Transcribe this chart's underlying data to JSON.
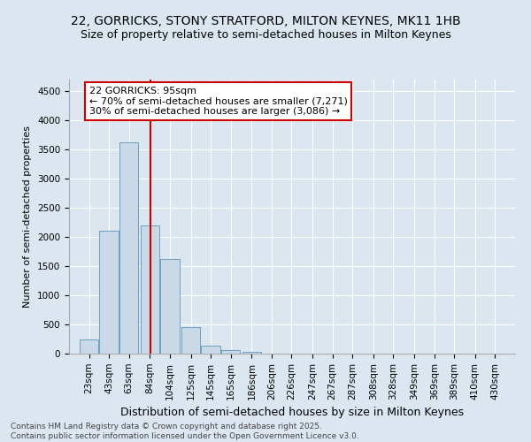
{
  "title": "22, GORRICKS, STONY STRATFORD, MILTON KEYNES, MK11 1HB",
  "subtitle": "Size of property relative to semi-detached houses in Milton Keynes",
  "xlabel": "Distribution of semi-detached houses by size in Milton Keynes",
  "ylabel": "Number of semi-detached properties",
  "bin_labels": [
    "23sqm",
    "43sqm",
    "63sqm",
    "84sqm",
    "104sqm",
    "125sqm",
    "145sqm",
    "165sqm",
    "186sqm",
    "206sqm",
    "226sqm",
    "247sqm",
    "267sqm",
    "287sqm",
    "308sqm",
    "328sqm",
    "349sqm",
    "369sqm",
    "389sqm",
    "410sqm",
    "430sqm"
  ],
  "bin_edges": [
    23,
    43,
    63,
    84,
    104,
    125,
    145,
    165,
    186,
    206,
    226,
    247,
    267,
    287,
    308,
    328,
    349,
    369,
    389,
    410,
    430
  ],
  "bar_heights": [
    250,
    2100,
    3620,
    2200,
    1620,
    450,
    130,
    60,
    30,
    0,
    0,
    0,
    0,
    0,
    0,
    0,
    0,
    0,
    0,
    0
  ],
  "bar_color": "#c9d9e8",
  "bar_edgecolor": "#6a9fc0",
  "property_size": 95,
  "vline_color": "#cc0000",
  "annotation_line1": "22 GORRICKS: 95sqm",
  "annotation_line2": "← 70% of semi-detached houses are smaller (7,271)",
  "annotation_line3": "30% of semi-detached houses are larger (3,086) →",
  "annotation_box_color": "#ffffff",
  "annotation_box_edgecolor": "#cc0000",
  "ylim": [
    0,
    4700
  ],
  "yticks": [
    0,
    500,
    1000,
    1500,
    2000,
    2500,
    3000,
    3500,
    4000,
    4500
  ],
  "background_color": "#dce6f0",
  "plot_background": "#dce6f0",
  "footer_text": "Contains HM Land Registry data © Crown copyright and database right 2025.\nContains public sector information licensed under the Open Government Licence v3.0.",
  "title_fontsize": 10,
  "subtitle_fontsize": 9,
  "ylabel_fontsize": 8,
  "xlabel_fontsize": 9,
  "tick_fontsize": 7.5,
  "footer_fontsize": 6.5,
  "annot_fontsize": 8
}
